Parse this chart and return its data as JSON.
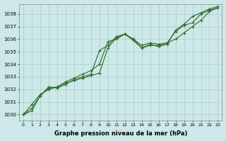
{
  "x": [
    0,
    1,
    2,
    3,
    4,
    5,
    6,
    7,
    8,
    9,
    10,
    11,
    12,
    13,
    14,
    15,
    16,
    17,
    18,
    19,
    20,
    21,
    22,
    23
  ],
  "line1": [
    1030.0,
    1030.8,
    1031.6,
    1032.0,
    1032.2,
    1032.5,
    1032.7,
    1032.9,
    1033.1,
    1033.3,
    1035.3,
    1036.1,
    1036.4,
    1036.0,
    1035.5,
    1035.7,
    1035.6,
    1035.7,
    1036.6,
    1037.1,
    1037.3,
    1038.0,
    1038.3,
    1038.5
  ],
  "line2": [
    1030.0,
    1030.5,
    1031.5,
    1032.1,
    1032.2,
    1032.6,
    1032.9,
    1033.2,
    1033.5,
    1034.0,
    1035.8,
    1036.0,
    1036.4,
    1035.9,
    1035.3,
    1035.6,
    1035.4,
    1035.6,
    1036.7,
    1037.2,
    1037.8,
    1038.1,
    1038.4,
    1038.6
  ],
  "line3": [
    1030.0,
    1030.3,
    1031.5,
    1032.2,
    1032.1,
    1032.4,
    1032.8,
    1033.0,
    1033.2,
    1035.1,
    1035.5,
    1036.2,
    1036.4,
    1036.0,
    1035.3,
    1035.5,
    1035.5,
    1035.7,
    1036.0,
    1036.5,
    1037.0,
    1037.5,
    1038.2,
    1038.5
  ],
  "bg_color": "#cce8e8",
  "grid_color": "#aacccc",
  "line_color": "#2d6a2d",
  "xlabel": "Graphe pression niveau de la mer (hPa)",
  "ylim": [
    1029.5,
    1038.8
  ],
  "xlim": [
    -0.5,
    23.5
  ],
  "yticks": [
    1030,
    1031,
    1032,
    1033,
    1034,
    1035,
    1036,
    1037,
    1038
  ],
  "xticks": [
    0,
    1,
    2,
    3,
    4,
    5,
    6,
    7,
    8,
    9,
    10,
    11,
    12,
    13,
    14,
    15,
    16,
    17,
    18,
    19,
    20,
    21,
    22,
    23
  ]
}
